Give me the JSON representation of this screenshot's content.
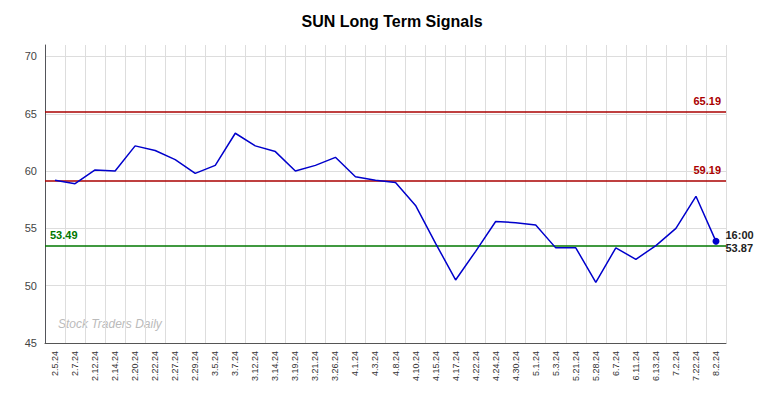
{
  "chart_data": {
    "type": "line",
    "title": "SUN Long Term Signals",
    "categories": [
      "2.5.24",
      "2.7.24",
      "2.12.24",
      "2.14.24",
      "2.20.24",
      "2.22.24",
      "2.27.24",
      "2.29.24",
      "3.5.24",
      "3.7.24",
      "3.12.24",
      "3.14.24",
      "3.19.24",
      "3.21.24",
      "3.26.24",
      "4.1.24",
      "4.3.24",
      "4.8.24",
      "4.10.24",
      "4.15.24",
      "4.17.24",
      "4.22.24",
      "4.24.24",
      "4.30.24",
      "5.1.24",
      "5.3.24",
      "5.21.24",
      "5.28.24",
      "6.7.24",
      "6.11.24",
      "6.13.24",
      "7.2.24",
      "7.22.24",
      "8.2.24"
    ],
    "values": [
      59.2,
      58.9,
      60.1,
      60.0,
      62.2,
      61.8,
      61.0,
      59.8,
      60.5,
      63.3,
      62.2,
      61.7,
      60.0,
      60.5,
      61.2,
      59.5,
      59.2,
      59.0,
      57.0,
      53.7,
      50.5,
      53.0,
      55.6,
      55.5,
      55.3,
      53.3,
      53.3,
      50.3,
      53.3,
      52.3,
      53.5,
      55.0,
      57.8,
      53.87
    ],
    "color": "#0000cc",
    "ylim": [
      45,
      71
    ],
    "yticks": [
      45,
      50,
      55,
      60,
      65,
      70
    ],
    "grid": true,
    "reference_lines": [
      {
        "value": 65.19,
        "color": "#aa0000"
      },
      {
        "value": 59.19,
        "color": "#aa0000"
      },
      {
        "value": 53.49,
        "color": "#007700"
      }
    ],
    "annotations": [
      {
        "text": "16:00",
        "x": "8.2.24",
        "y": 53.87
      },
      {
        "text": "53.87",
        "x": "8.2.24",
        "y": 53.87
      },
      {
        "text": "Stock Traders Daily"
      }
    ]
  }
}
